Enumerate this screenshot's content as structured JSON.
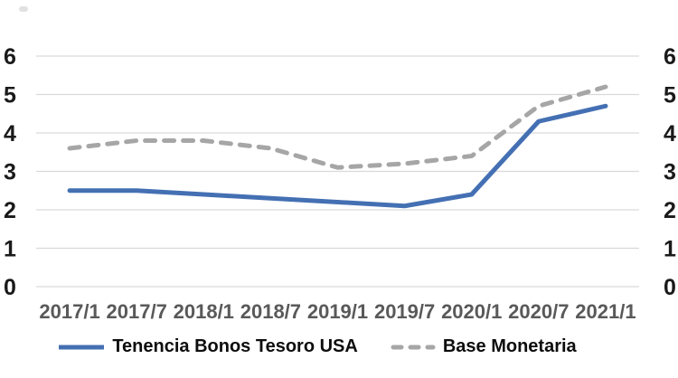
{
  "chart_data": {
    "type": "line",
    "title": "",
    "xlabel": "",
    "ylabel": "",
    "categories": [
      "2017/1",
      "2017/7",
      "2018/1",
      "2018/7",
      "2019/1",
      "2019/7",
      "2020/1",
      "2020/7",
      "2021/1"
    ],
    "series": [
      {
        "name": "Tenencia Bonos Tesoro USA",
        "style": "solid",
        "color": "#4470B3",
        "values": [
          2.5,
          2.5,
          2.4,
          2.3,
          2.2,
          2.1,
          2.4,
          4.3,
          4.7
        ]
      },
      {
        "name": "Base Monetaria",
        "style": "dashed",
        "color": "#A6A6A6",
        "values": [
          3.6,
          3.8,
          3.8,
          3.6,
          3.1,
          3.2,
          3.4,
          4.7,
          5.2
        ]
      }
    ],
    "y_ticks": [
      0,
      1,
      2,
      3,
      4,
      5,
      6
    ],
    "ylim": [
      0,
      6
    ],
    "dual_y_axis": true,
    "grid": true,
    "grid_color": "#D9D9D9",
    "y_tick_color": "#1A1A1A",
    "x_tick_color": "#595959",
    "legend_position": "bottom"
  }
}
